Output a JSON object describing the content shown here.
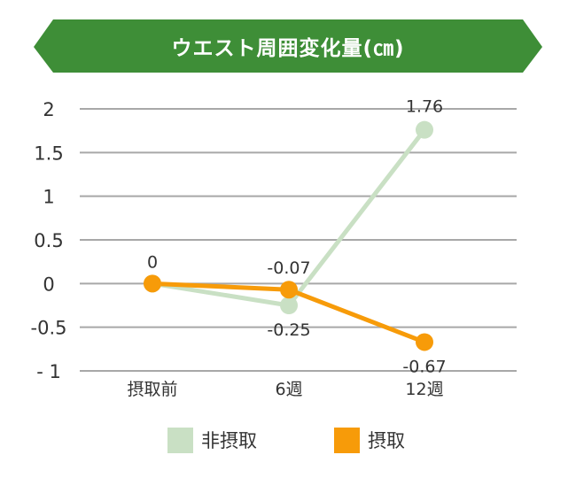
{
  "chart_data": {
    "type": "line",
    "title": "ウエスト周囲変化量(㎝)",
    "categories": [
      "摂取前",
      "6週",
      "12週"
    ],
    "ylim": [
      -1,
      2
    ],
    "yticks": [
      2,
      1.5,
      1,
      0.5,
      0,
      -0.5,
      -1
    ],
    "ytick_labels": [
      "2",
      "1.5",
      "1",
      "0.5",
      "0",
      "-0.5",
      "- 1"
    ],
    "grid": true,
    "legend_position": "bottom",
    "series": [
      {
        "name": "非摂取",
        "color": "#c9e0c4",
        "values": [
          0,
          -0.25,
          1.76
        ],
        "labels": [
          "",
          "-0.25",
          "1.76"
        ]
      },
      {
        "name": "摂取",
        "color": "#f79b09",
        "values": [
          0,
          -0.07,
          -0.67
        ],
        "labels": [
          "0",
          "-0.07",
          "-0.67"
        ]
      }
    ]
  },
  "colors": {
    "title_banner": "#3e8e37",
    "grid": "#a8a8a8",
    "text": "#333333"
  }
}
